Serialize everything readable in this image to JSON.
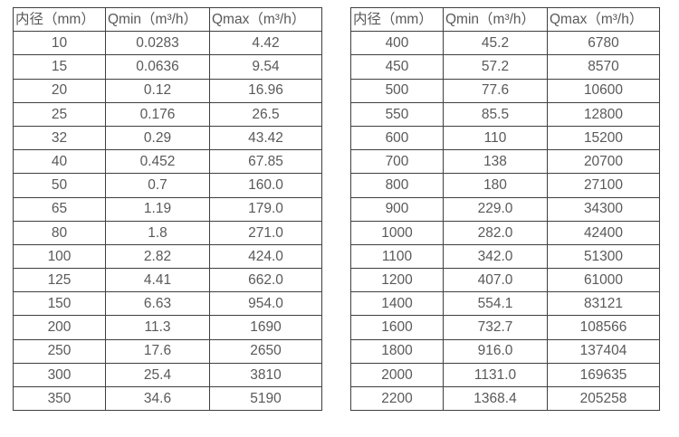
{
  "colors": {
    "background": "#ffffff",
    "table_border": "#3f3f3f",
    "text": "#595959"
  },
  "chart_data": [
    {
      "type": "table",
      "name": "flow-spec-small-diameters",
      "headers": [
        "内径（mm）",
        "Qmin（m³/h）",
        "Qmax（m³/h）"
      ],
      "rows": [
        [
          "10",
          "0.0283",
          "4.42"
        ],
        [
          "15",
          "0.0636",
          "9.54"
        ],
        [
          "20",
          "0.12",
          "16.96"
        ],
        [
          "25",
          "0.176",
          "26.5"
        ],
        [
          "32",
          "0.29",
          "43.42"
        ],
        [
          "40",
          "0.452",
          "67.85"
        ],
        [
          "50",
          "0.7",
          "160.0"
        ],
        [
          "65",
          "1.19",
          "179.0"
        ],
        [
          "80",
          "1.8",
          "271.0"
        ],
        [
          "100",
          "2.82",
          "424.0"
        ],
        [
          "125",
          "4.41",
          "662.0"
        ],
        [
          "150",
          "6.63",
          "954.0"
        ],
        [
          "200",
          "11.3",
          "1690"
        ],
        [
          "250",
          "17.6",
          "2650"
        ],
        [
          "300",
          "25.4",
          "3810"
        ],
        [
          "350",
          "34.6",
          "5190"
        ]
      ]
    },
    {
      "type": "table",
      "name": "flow-spec-large-diameters",
      "headers": [
        "内径（mm）",
        "Qmin（m³/h）",
        "Qmax（m³/h）"
      ],
      "rows": [
        [
          "400",
          "45.2",
          "6780"
        ],
        [
          "450",
          "57.2",
          "8570"
        ],
        [
          "500",
          "77.6",
          "10600"
        ],
        [
          "550",
          "85.5",
          "12800"
        ],
        [
          "600",
          "110",
          "15200"
        ],
        [
          "700",
          "138",
          "20700"
        ],
        [
          "800",
          "180",
          "27100"
        ],
        [
          "900",
          "229.0",
          "34300"
        ],
        [
          "1000",
          "282.0",
          "42400"
        ],
        [
          "1100",
          "342.0",
          "51300"
        ],
        [
          "1200",
          "407.0",
          "61000"
        ],
        [
          "1400",
          "554.1",
          "83121"
        ],
        [
          "1600",
          "732.7",
          "108566"
        ],
        [
          "1800",
          "916.0",
          "137404"
        ],
        [
          "2000",
          "1131.0",
          "169635"
        ],
        [
          "2200",
          "1368.4",
          "205258"
        ]
      ]
    }
  ]
}
